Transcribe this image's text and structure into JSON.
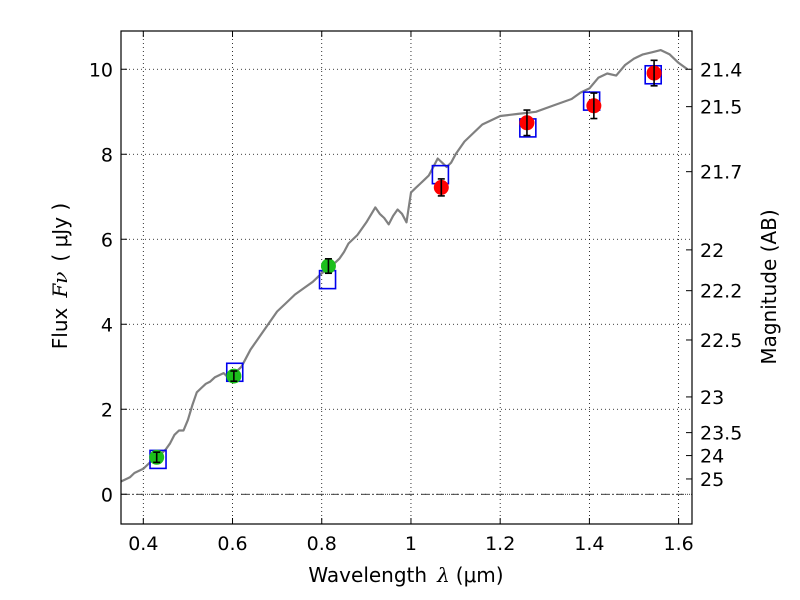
{
  "chart_data": {
    "type": "scatter",
    "xlabel_text": "Wavelength",
    "xlabel_symbol": "λ",
    "xlabel_unit": "(μm)",
    "ylabel_text": "Flux",
    "ylabel_symbol": "Fν",
    "ylabel_unit": "( μJy )",
    "y2label": "Magnitude (AB)",
    "xlim": [
      0.35,
      1.63
    ],
    "ylim": [
      -0.7,
      10.9
    ],
    "grid": true,
    "x_ticks": [
      0.4,
      0.6,
      0.8,
      1.0,
      1.2,
      1.4,
      1.6
    ],
    "x_tick_labels": [
      "0.4",
      "0.6",
      "0.8",
      "1",
      "1.2",
      "1.4",
      "1.6"
    ],
    "y_ticks": [
      0,
      2,
      4,
      6,
      8,
      10
    ],
    "y_tick_labels": [
      "0",
      "2",
      "4",
      "6",
      "8",
      "10"
    ],
    "mag_ticks": [
      {
        "label": "21.4",
        "flux": 10.0
      },
      {
        "label": "21.5",
        "flux": 9.12
      },
      {
        "label": "21.7",
        "flux": 7.59
      },
      {
        "label": "22",
        "flux": 5.75
      },
      {
        "label": "22.2",
        "flux": 4.79
      },
      {
        "label": "22.5",
        "flux": 3.63
      },
      {
        "label": "23",
        "flux": 2.29
      },
      {
        "label": "23.5",
        "flux": 1.45
      },
      {
        "label": "24",
        "flux": 0.91
      },
      {
        "label": "25",
        "flux": 0.36
      }
    ],
    "series": [
      {
        "name": "model_spectrum",
        "style": "line",
        "color": "#808080",
        "x": [
          0.35,
          0.36,
          0.37,
          0.38,
          0.39,
          0.4,
          0.41,
          0.42,
          0.43,
          0.44,
          0.45,
          0.46,
          0.47,
          0.48,
          0.49,
          0.5,
          0.51,
          0.52,
          0.53,
          0.54,
          0.55,
          0.56,
          0.57,
          0.58,
          0.59,
          0.6,
          0.62,
          0.64,
          0.66,
          0.68,
          0.7,
          0.72,
          0.74,
          0.76,
          0.78,
          0.8,
          0.82,
          0.84,
          0.85,
          0.86,
          0.88,
          0.9,
          0.92,
          0.93,
          0.94,
          0.95,
          0.96,
          0.97,
          0.98,
          0.99,
          1.0,
          1.01,
          1.02,
          1.03,
          1.04,
          1.05,
          1.06,
          1.07,
          1.08,
          1.09,
          1.1,
          1.12,
          1.14,
          1.16,
          1.18,
          1.2,
          1.24,
          1.28,
          1.32,
          1.36,
          1.38,
          1.4,
          1.42,
          1.44,
          1.46,
          1.48,
          1.5,
          1.52,
          1.54,
          1.56,
          1.58,
          1.6,
          1.62
        ],
        "y": [
          0.3,
          0.35,
          0.4,
          0.5,
          0.55,
          0.6,
          0.7,
          0.8,
          0.85,
          0.95,
          1.05,
          1.2,
          1.4,
          1.5,
          1.5,
          1.75,
          2.1,
          2.4,
          2.5,
          2.6,
          2.65,
          2.75,
          2.8,
          2.85,
          2.75,
          2.8,
          3.0,
          3.4,
          3.7,
          4.0,
          4.3,
          4.5,
          4.7,
          4.85,
          5.0,
          5.2,
          5.35,
          5.55,
          5.7,
          5.9,
          6.1,
          6.4,
          6.75,
          6.6,
          6.5,
          6.35,
          6.55,
          6.7,
          6.6,
          6.4,
          7.1,
          7.2,
          7.3,
          7.4,
          7.5,
          7.7,
          7.9,
          7.8,
          7.7,
          7.8,
          8.0,
          8.3,
          8.5,
          8.7,
          8.8,
          8.9,
          8.95,
          9.0,
          9.15,
          9.3,
          9.45,
          9.55,
          9.8,
          9.9,
          9.85,
          10.1,
          10.25,
          10.35,
          10.4,
          10.45,
          10.35,
          10.15,
          10.0
        ]
      },
      {
        "name": "optical_points",
        "style": "points",
        "color": "#1cbf1c",
        "x": [
          0.43,
          0.603,
          0.815
        ],
        "y": [
          0.87,
          2.78,
          5.37
        ],
        "err": [
          0.12,
          0.12,
          0.17
        ]
      },
      {
        "name": "nir_points",
        "style": "points",
        "color": "#ff0000",
        "x": [
          1.068,
          1.26,
          1.41,
          1.545
        ],
        "y": [
          7.22,
          8.74,
          9.14,
          9.91
        ],
        "err": [
          0.2,
          0.3,
          0.3,
          0.3
        ]
      },
      {
        "name": "model_band_fluxes",
        "style": "open-squares",
        "color": "#0000ee",
        "x": [
          0.433,
          0.605,
          0.813,
          1.066,
          1.262,
          1.405,
          1.543
        ],
        "y": [
          0.82,
          2.87,
          5.05,
          7.52,
          8.62,
          9.25,
          9.87
        ]
      }
    ]
  }
}
